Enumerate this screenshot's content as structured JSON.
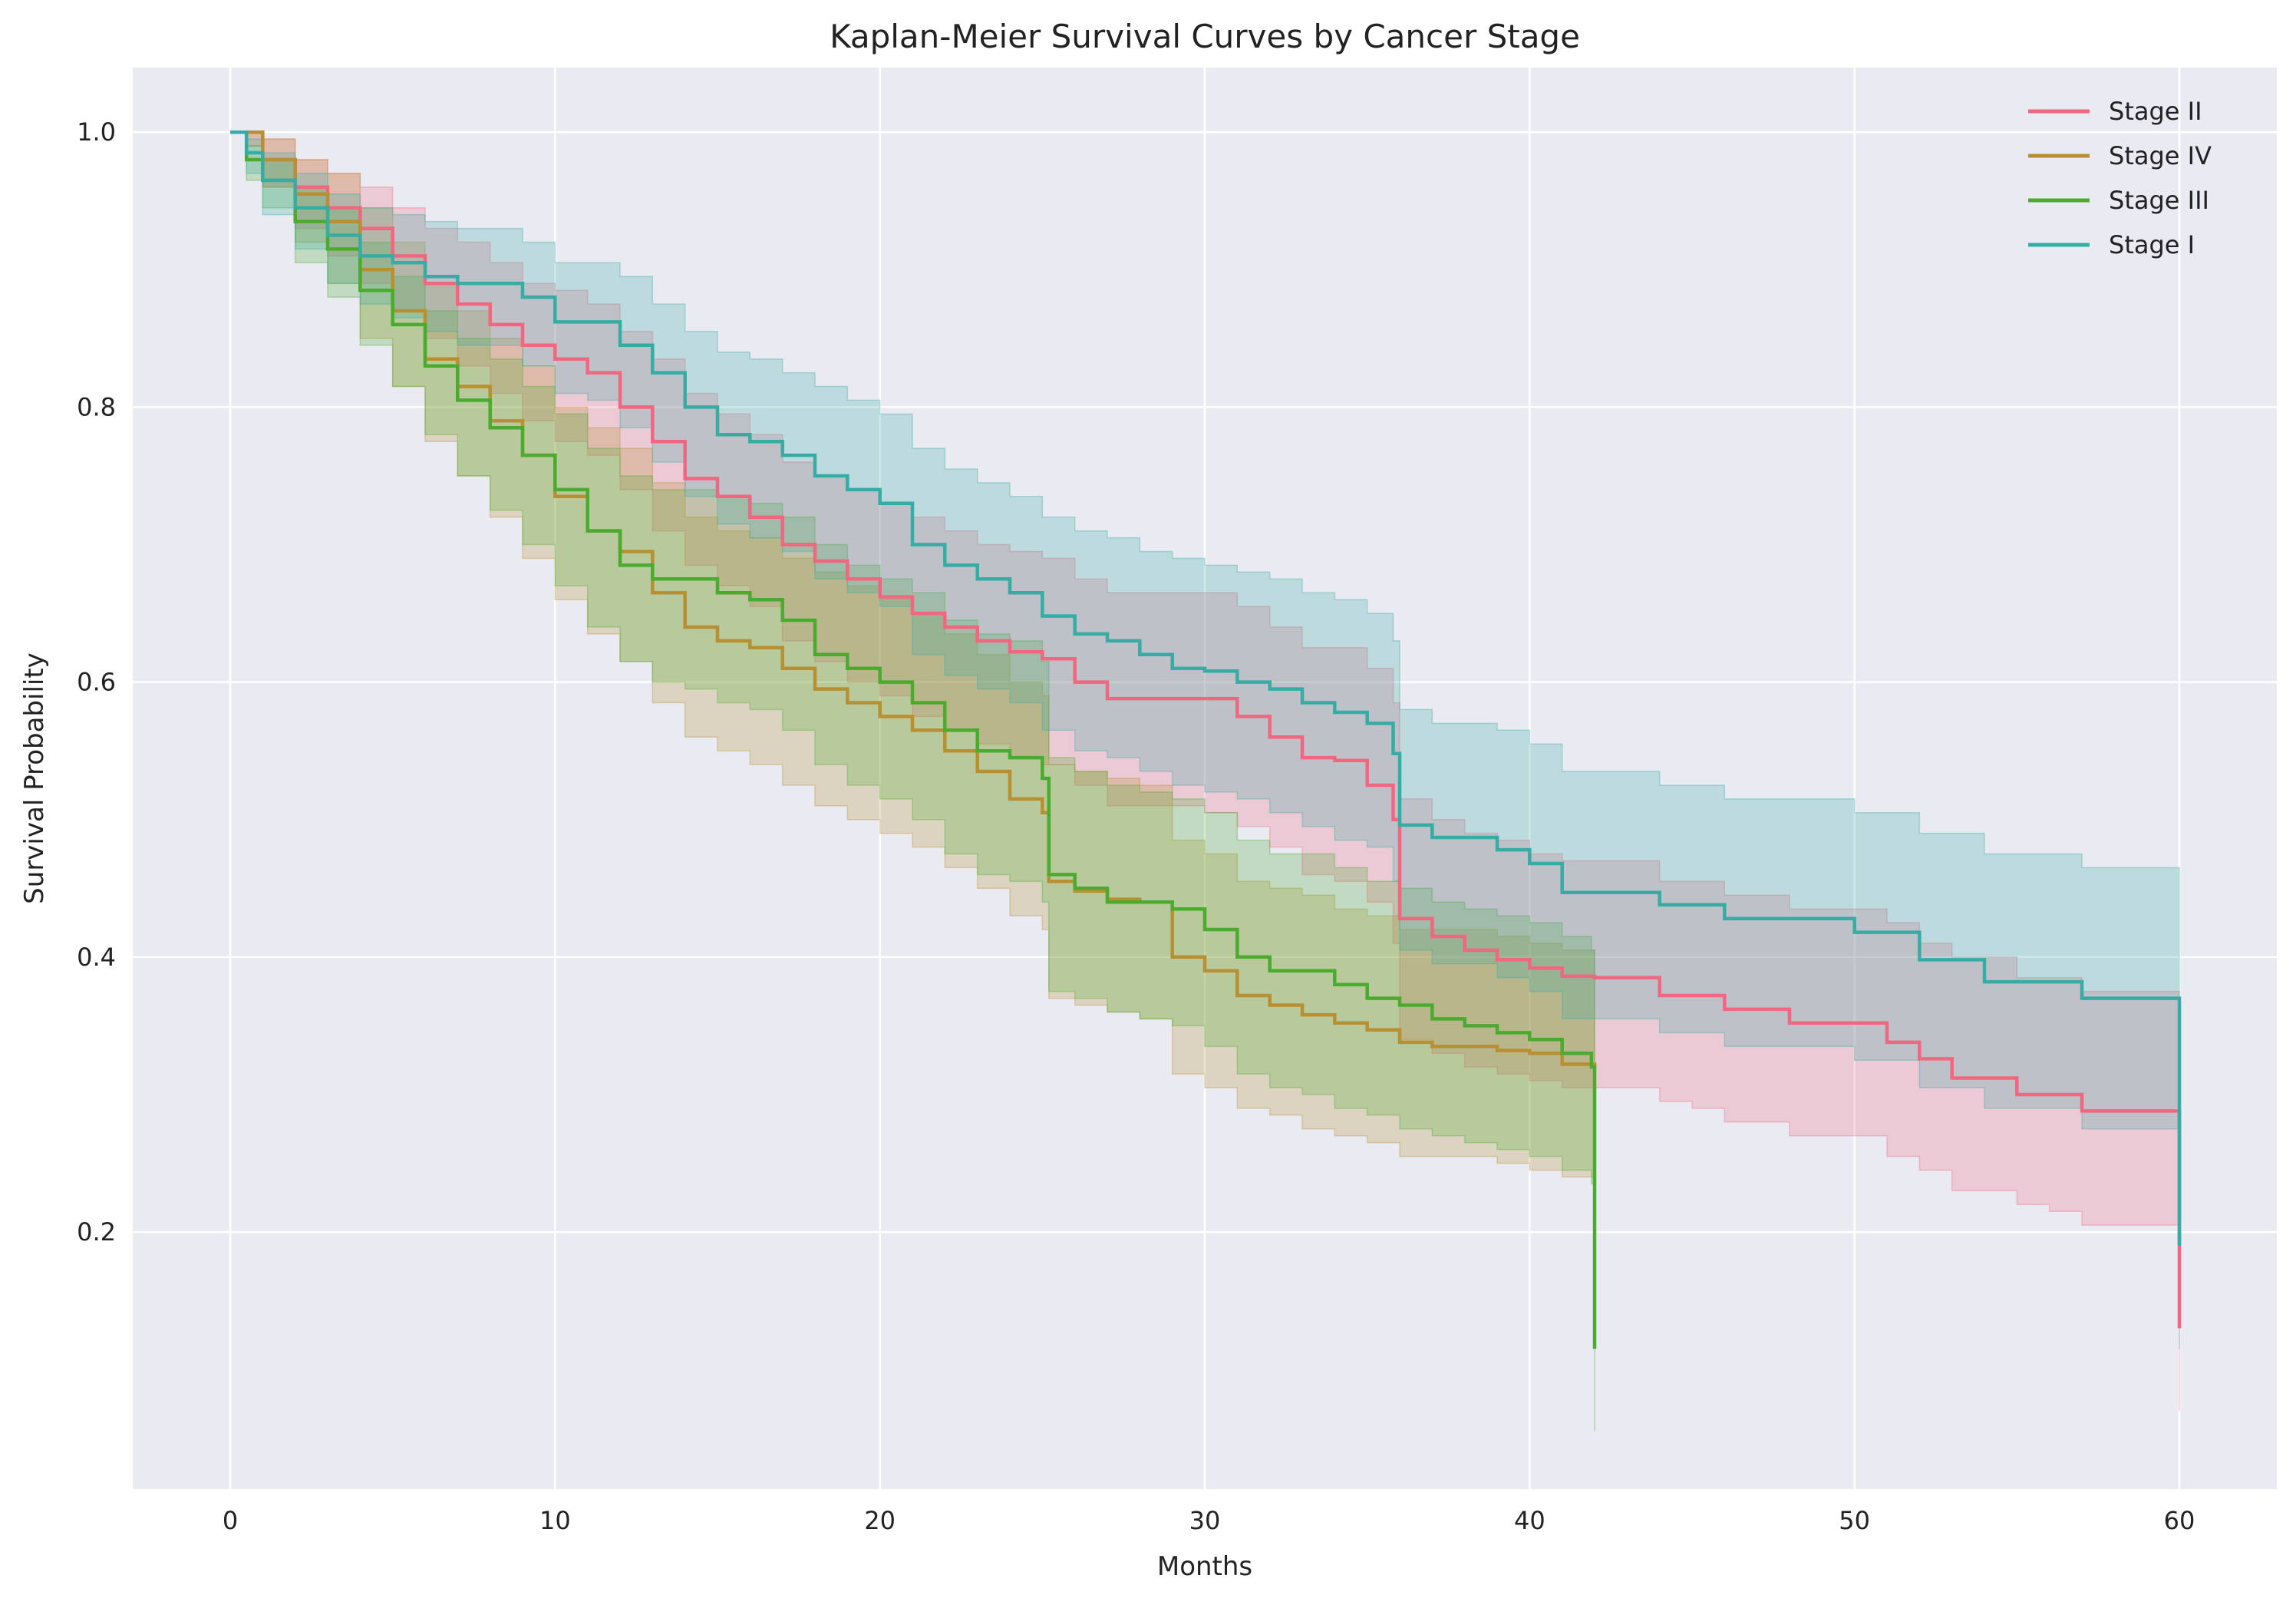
{
  "chart_data": {
    "type": "line",
    "subtype": "kaplan-meier step curves with confidence bands",
    "title": "Kaplan-Meier Survival Curves by Cancer Stage",
    "xlabel": "Months",
    "ylabel": "Survival Probability",
    "xlim": [
      -3,
      63
    ],
    "ylim": [
      0.013,
      1.047
    ],
    "xticks": [
      0,
      10,
      20,
      30,
      40,
      50,
      60
    ],
    "yticks": [
      0.2,
      0.4,
      0.6,
      0.8,
      1.0
    ],
    "xtick_labels": [
      "0",
      "10",
      "20",
      "30",
      "40",
      "50",
      "60"
    ],
    "ytick_labels": [
      "0.2",
      "0.4",
      "0.6",
      "0.8",
      "1.0"
    ],
    "grid": true,
    "background": "#eaeaf2",
    "grid_color": "#ffffff",
    "legend_position": "top-right",
    "series": [
      {
        "name": "Stage II",
        "color": "#f0677f",
        "x": [
          0,
          0.5,
          1,
          2,
          3,
          4,
          5,
          6,
          7,
          8,
          9,
          10,
          11,
          12,
          13,
          14,
          15,
          16,
          17,
          18,
          19,
          20,
          21,
          22,
          23,
          24,
          25,
          26,
          27,
          28,
          29,
          30,
          31,
          32,
          33,
          34,
          35,
          35.8,
          36,
          37,
          38,
          39,
          40,
          41,
          42,
          43,
          44,
          45,
          46,
          47,
          48,
          49,
          50,
          51,
          52,
          53,
          54,
          55,
          56,
          57,
          58,
          59,
          59.9,
          60
        ],
        "y": [
          1.0,
          1.0,
          0.98,
          0.96,
          0.945,
          0.93,
          0.91,
          0.89,
          0.875,
          0.86,
          0.845,
          0.835,
          0.825,
          0.8,
          0.775,
          0.748,
          0.735,
          0.72,
          0.7,
          0.688,
          0.675,
          0.662,
          0.65,
          0.64,
          0.63,
          0.622,
          0.617,
          0.6,
          0.588,
          0.588,
          0.588,
          0.588,
          0.575,
          0.56,
          0.545,
          0.543,
          0.525,
          0.5,
          0.428,
          0.415,
          0.405,
          0.398,
          0.392,
          0.386,
          0.385,
          0.385,
          0.372,
          0.372,
          0.362,
          0.362,
          0.352,
          0.352,
          0.352,
          0.338,
          0.326,
          0.312,
          0.312,
          0.3,
          0.3,
          0.288,
          0.288,
          0.288,
          0.288,
          0.13
        ],
        "ci_lower": [
          1.0,
          0.99,
          0.96,
          0.93,
          0.91,
          0.89,
          0.87,
          0.85,
          0.83,
          0.81,
          0.79,
          0.775,
          0.765,
          0.74,
          0.71,
          0.685,
          0.67,
          0.655,
          0.63,
          0.615,
          0.6,
          0.59,
          0.575,
          0.565,
          0.555,
          0.545,
          0.54,
          0.525,
          0.51,
          0.51,
          0.51,
          0.505,
          0.495,
          0.48,
          0.46,
          0.455,
          0.44,
          0.41,
          0.34,
          0.33,
          0.32,
          0.315,
          0.31,
          0.305,
          0.305,
          0.305,
          0.295,
          0.29,
          0.28,
          0.28,
          0.27,
          0.27,
          0.27,
          0.255,
          0.245,
          0.23,
          0.23,
          0.22,
          0.215,
          0.205,
          0.205,
          0.205,
          0.205,
          0.07
        ],
        "ci_upper": [
          1.0,
          1.0,
          0.995,
          0.98,
          0.97,
          0.96,
          0.945,
          0.93,
          0.92,
          0.905,
          0.89,
          0.885,
          0.875,
          0.855,
          0.835,
          0.81,
          0.795,
          0.78,
          0.76,
          0.75,
          0.74,
          0.73,
          0.72,
          0.71,
          0.7,
          0.695,
          0.69,
          0.675,
          0.665,
          0.665,
          0.665,
          0.665,
          0.655,
          0.64,
          0.625,
          0.625,
          0.61,
          0.585,
          0.515,
          0.5,
          0.49,
          0.485,
          0.475,
          0.47,
          0.47,
          0.47,
          0.455,
          0.455,
          0.445,
          0.445,
          0.435,
          0.435,
          0.435,
          0.425,
          0.41,
          0.4,
          0.4,
          0.385,
          0.385,
          0.375,
          0.375,
          0.375,
          0.375,
          0.19
        ]
      },
      {
        "name": "Stage IV",
        "color": "#b88f31",
        "x": [
          0,
          0.5,
          1,
          2,
          3,
          4,
          5,
          6,
          7,
          8,
          9,
          10,
          11,
          12,
          13,
          14,
          15,
          16,
          17,
          18,
          19,
          20,
          21,
          22,
          23,
          24,
          25,
          25.2,
          26,
          27,
          28,
          29,
          30,
          31,
          32,
          33,
          34,
          35,
          36,
          37,
          38,
          39,
          40,
          41,
          42
        ],
        "y": [
          1.0,
          1.0,
          0.98,
          0.955,
          0.935,
          0.9,
          0.87,
          0.835,
          0.815,
          0.79,
          0.765,
          0.735,
          0.71,
          0.695,
          0.665,
          0.64,
          0.63,
          0.625,
          0.61,
          0.595,
          0.585,
          0.575,
          0.565,
          0.55,
          0.535,
          0.515,
          0.505,
          0.455,
          0.448,
          0.442,
          0.44,
          0.4,
          0.39,
          0.372,
          0.365,
          0.358,
          0.352,
          0.347,
          0.338,
          0.335,
          0.335,
          0.332,
          0.33,
          0.322,
          0.32
        ],
        "ci_lower": [
          1.0,
          0.99,
          0.96,
          0.92,
          0.89,
          0.85,
          0.815,
          0.775,
          0.75,
          0.72,
          0.69,
          0.66,
          0.635,
          0.615,
          0.585,
          0.56,
          0.55,
          0.54,
          0.525,
          0.51,
          0.5,
          0.49,
          0.48,
          0.465,
          0.45,
          0.43,
          0.42,
          0.37,
          0.365,
          0.36,
          0.355,
          0.315,
          0.305,
          0.29,
          0.285,
          0.275,
          0.27,
          0.265,
          0.255,
          0.255,
          0.255,
          0.25,
          0.245,
          0.24,
          0.24
        ],
        "ci_upper": [
          1.0,
          1.0,
          0.995,
          0.98,
          0.97,
          0.945,
          0.92,
          0.89,
          0.87,
          0.85,
          0.83,
          0.8,
          0.785,
          0.77,
          0.745,
          0.72,
          0.71,
          0.705,
          0.69,
          0.68,
          0.67,
          0.66,
          0.65,
          0.635,
          0.62,
          0.6,
          0.59,
          0.54,
          0.535,
          0.53,
          0.525,
          0.485,
          0.475,
          0.455,
          0.45,
          0.445,
          0.435,
          0.43,
          0.42,
          0.42,
          0.42,
          0.415,
          0.41,
          0.405,
          0.4
        ]
      },
      {
        "name": "Stage III",
        "color": "#4aab2f",
        "x": [
          0,
          0.5,
          1,
          2,
          3,
          4,
          5,
          6,
          7,
          8,
          9,
          10,
          11,
          12,
          13,
          14,
          15,
          16,
          17,
          18,
          19,
          20,
          21,
          22,
          23,
          24,
          25,
          25.2,
          26,
          27,
          28,
          29,
          30,
          31,
          32,
          33,
          34,
          35,
          36,
          37,
          38,
          39,
          40,
          41,
          41.9,
          42
        ],
        "y": [
          1.0,
          0.98,
          0.965,
          0.935,
          0.915,
          0.885,
          0.86,
          0.83,
          0.805,
          0.785,
          0.765,
          0.74,
          0.71,
          0.685,
          0.675,
          0.675,
          0.665,
          0.66,
          0.645,
          0.62,
          0.61,
          0.6,
          0.585,
          0.565,
          0.55,
          0.545,
          0.53,
          0.46,
          0.45,
          0.44,
          0.44,
          0.435,
          0.42,
          0.4,
          0.39,
          0.39,
          0.38,
          0.37,
          0.365,
          0.355,
          0.35,
          0.345,
          0.34,
          0.33,
          0.32,
          0.115
        ],
        "ci_lower": [
          1.0,
          0.965,
          0.945,
          0.905,
          0.88,
          0.845,
          0.815,
          0.78,
          0.75,
          0.725,
          0.7,
          0.67,
          0.64,
          0.615,
          0.6,
          0.595,
          0.585,
          0.58,
          0.565,
          0.54,
          0.525,
          0.515,
          0.5,
          0.475,
          0.46,
          0.455,
          0.44,
          0.375,
          0.37,
          0.36,
          0.355,
          0.35,
          0.335,
          0.315,
          0.305,
          0.3,
          0.29,
          0.285,
          0.275,
          0.27,
          0.265,
          0.26,
          0.255,
          0.245,
          0.235,
          0.055
        ],
        "ci_upper": [
          1.0,
          0.99,
          0.98,
          0.96,
          0.945,
          0.92,
          0.895,
          0.87,
          0.85,
          0.835,
          0.815,
          0.795,
          0.77,
          0.75,
          0.74,
          0.74,
          0.735,
          0.73,
          0.72,
          0.7,
          0.685,
          0.675,
          0.665,
          0.645,
          0.635,
          0.63,
          0.615,
          0.545,
          0.535,
          0.525,
          0.52,
          0.515,
          0.505,
          0.485,
          0.475,
          0.475,
          0.465,
          0.455,
          0.45,
          0.44,
          0.435,
          0.43,
          0.425,
          0.415,
          0.405,
          0.19
        ]
      },
      {
        "name": "Stage I",
        "color": "#36ada4",
        "x": [
          0,
          0.5,
          1,
          2,
          3,
          4,
          5,
          6,
          7,
          8,
          9,
          10,
          11,
          12,
          13,
          14,
          15,
          16,
          17,
          18,
          19,
          20,
          21,
          22,
          23,
          24,
          25,
          26,
          27,
          28,
          29,
          30,
          31,
          32,
          33,
          34,
          35,
          35.8,
          36,
          37,
          38,
          39,
          40,
          41,
          42,
          43,
          44,
          45,
          46,
          47,
          48,
          49,
          50,
          51,
          52,
          53,
          54,
          55,
          56,
          57,
          58,
          59,
          59.9,
          60
        ],
        "y": [
          1.0,
          0.985,
          0.965,
          0.945,
          0.925,
          0.91,
          0.905,
          0.895,
          0.89,
          0.89,
          0.88,
          0.862,
          0.862,
          0.845,
          0.825,
          0.8,
          0.78,
          0.775,
          0.765,
          0.75,
          0.74,
          0.73,
          0.7,
          0.685,
          0.675,
          0.665,
          0.648,
          0.635,
          0.63,
          0.62,
          0.61,
          0.608,
          0.6,
          0.595,
          0.585,
          0.578,
          0.57,
          0.548,
          0.496,
          0.487,
          0.487,
          0.478,
          0.468,
          0.447,
          0.447,
          0.447,
          0.438,
          0.438,
          0.428,
          0.428,
          0.428,
          0.428,
          0.418,
          0.418,
          0.398,
          0.398,
          0.382,
          0.382,
          0.382,
          0.37,
          0.37,
          0.37,
          0.37,
          0.19
        ],
        "ci_lower": [
          1.0,
          0.97,
          0.94,
          0.915,
          0.89,
          0.875,
          0.865,
          0.855,
          0.845,
          0.845,
          0.83,
          0.81,
          0.805,
          0.785,
          0.76,
          0.735,
          0.715,
          0.705,
          0.695,
          0.675,
          0.665,
          0.655,
          0.62,
          0.605,
          0.595,
          0.585,
          0.565,
          0.55,
          0.545,
          0.535,
          0.525,
          0.52,
          0.515,
          0.505,
          0.495,
          0.485,
          0.48,
          0.455,
          0.405,
          0.395,
          0.395,
          0.385,
          0.375,
          0.355,
          0.355,
          0.355,
          0.345,
          0.345,
          0.335,
          0.335,
          0.335,
          0.335,
          0.325,
          0.325,
          0.305,
          0.305,
          0.29,
          0.29,
          0.29,
          0.275,
          0.275,
          0.275,
          0.275,
          0.115
        ],
        "ci_upper": [
          1.0,
          0.995,
          0.985,
          0.97,
          0.955,
          0.945,
          0.94,
          0.935,
          0.93,
          0.93,
          0.92,
          0.905,
          0.905,
          0.895,
          0.875,
          0.855,
          0.84,
          0.835,
          0.825,
          0.815,
          0.805,
          0.795,
          0.77,
          0.755,
          0.745,
          0.735,
          0.72,
          0.71,
          0.705,
          0.695,
          0.69,
          0.685,
          0.68,
          0.675,
          0.665,
          0.66,
          0.65,
          0.63,
          0.58,
          0.57,
          0.57,
          0.565,
          0.555,
          0.535,
          0.535,
          0.535,
          0.525,
          0.525,
          0.515,
          0.515,
          0.515,
          0.515,
          0.505,
          0.505,
          0.49,
          0.49,
          0.475,
          0.475,
          0.475,
          0.465,
          0.465,
          0.465,
          0.465,
          0.27
        ]
      }
    ]
  }
}
